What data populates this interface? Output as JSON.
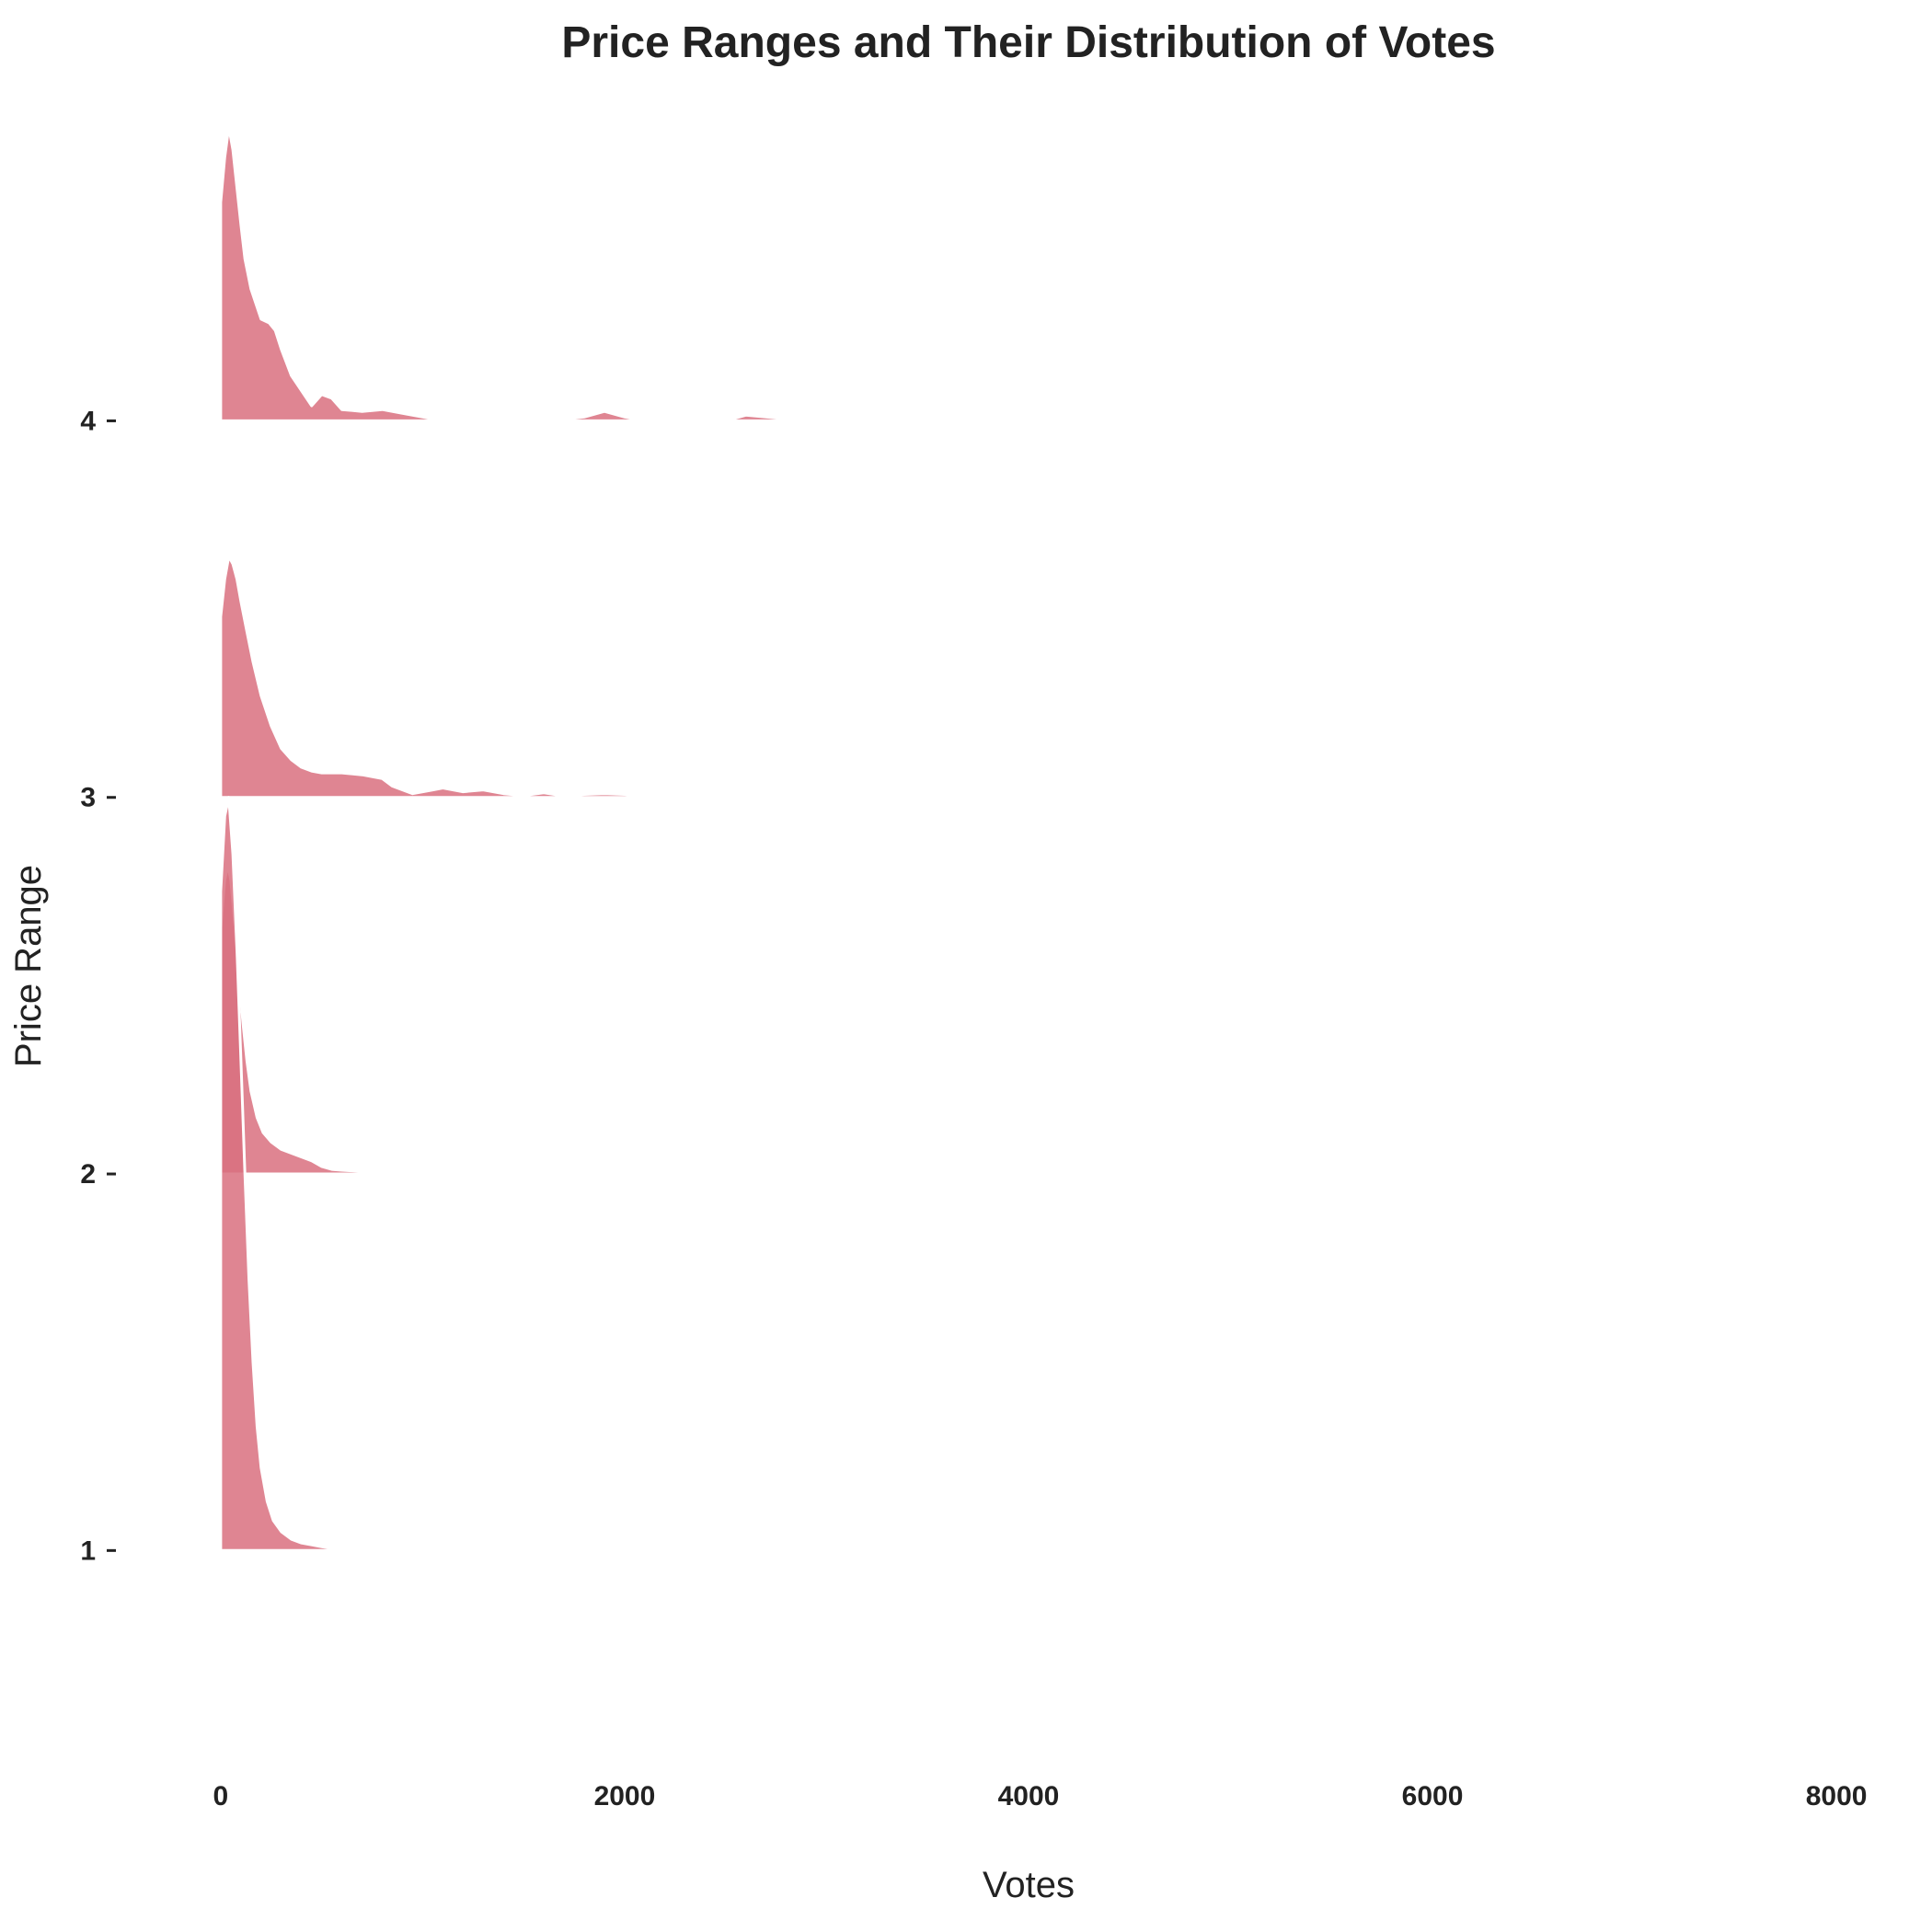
{
  "chart_data": {
    "type": "area",
    "subtype": "ridgeline density",
    "title": "Price Ranges and Their Distribution of Votes",
    "xlabel": "Votes",
    "ylabel": "Price Range",
    "xlim": [
      -200,
      8200
    ],
    "x_ticks": [
      0,
      2000,
      4000,
      6000,
      8000
    ],
    "y_ticks": [
      1,
      2,
      3,
      4
    ],
    "ylim": [
      0.5,
      4.8
    ],
    "grid": false,
    "legend": "none",
    "fill_color": "#d9707f",
    "fill_opacity": 0.85,
    "series": [
      {
        "category": "1",
        "baseline": 1,
        "points": [
          [
            0,
            1.4
          ],
          [
            0,
            1.75
          ],
          [
            20,
            1.95
          ],
          [
            40,
            2.0
          ],
          [
            60,
            1.85
          ],
          [
            80,
            1.6
          ],
          [
            100,
            1.3
          ],
          [
            120,
            1.0
          ],
          [
            140,
            0.72
          ],
          [
            160,
            0.5
          ],
          [
            180,
            0.33
          ],
          [
            200,
            0.22
          ],
          [
            230,
            0.13
          ],
          [
            260,
            0.08
          ],
          [
            300,
            0.05
          ],
          [
            350,
            0.03
          ],
          [
            400,
            0.02
          ],
          [
            450,
            0.015
          ],
          [
            500,
            0.01
          ],
          [
            560,
            0.005
          ],
          [
            580,
            0.0
          ]
        ]
      },
      {
        "category": "2",
        "baseline": 2,
        "points": [
          [
            0,
            0.65
          ],
          [
            10,
            0.72
          ],
          [
            20,
            0.78
          ],
          [
            35,
            0.82
          ],
          [
            50,
            0.78
          ],
          [
            70,
            0.66
          ],
          [
            90,
            0.52
          ],
          [
            110,
            0.4
          ],
          [
            130,
            0.3
          ],
          [
            150,
            0.22
          ],
          [
            180,
            0.15
          ],
          [
            210,
            0.11
          ],
          [
            250,
            0.085
          ],
          [
            300,
            0.065
          ],
          [
            350,
            0.055
          ],
          [
            400,
            0.045
          ],
          [
            450,
            0.035
          ],
          [
            500,
            0.02
          ],
          [
            550,
            0.012
          ],
          [
            600,
            0.01
          ],
          [
            700,
            0.007
          ],
          [
            800,
            0.005
          ],
          [
            1000,
            0.003
          ],
          [
            1200,
            0.002
          ],
          [
            1400,
            0.002
          ],
          [
            1600,
            0.0
          ]
        ]
      },
      {
        "category": "3",
        "baseline": 3,
        "points": [
          [
            0,
            0.48
          ],
          [
            20,
            0.58
          ],
          [
            40,
            0.64
          ],
          [
            60,
            0.62
          ],
          [
            80,
            0.58
          ],
          [
            100,
            0.52
          ],
          [
            130,
            0.44
          ],
          [
            160,
            0.36
          ],
          [
            200,
            0.27
          ],
          [
            250,
            0.19
          ],
          [
            300,
            0.13
          ],
          [
            350,
            0.1
          ],
          [
            400,
            0.08
          ],
          [
            450,
            0.07
          ],
          [
            500,
            0.065
          ],
          [
            600,
            0.065
          ],
          [
            700,
            0.06
          ],
          [
            800,
            0.05
          ],
          [
            850,
            0.03
          ],
          [
            950,
            0.01
          ],
          [
            1050,
            0.02
          ],
          [
            1100,
            0.025
          ],
          [
            1200,
            0.015
          ],
          [
            1300,
            0.02
          ],
          [
            1400,
            0.01
          ],
          [
            1500,
            0.005
          ],
          [
            1600,
            0.012
          ],
          [
            1700,
            0.004
          ],
          [
            1800,
            0.008
          ],
          [
            1900,
            0.01
          ],
          [
            2000,
            0.008
          ],
          [
            2100,
            0.003
          ],
          [
            2300,
            0.003
          ],
          [
            2500,
            0.002
          ],
          [
            3000,
            0.003
          ],
          [
            3500,
            0.001
          ],
          [
            4000,
            0.001
          ],
          [
            5000,
            0.0
          ]
        ]
      },
      {
        "category": "4",
        "baseline": 4,
        "points": [
          [
            0,
            0.58
          ],
          [
            20,
            0.7
          ],
          [
            40,
            0.78
          ],
          [
            60,
            0.72
          ],
          [
            80,
            0.62
          ],
          [
            100,
            0.52
          ],
          [
            120,
            0.43
          ],
          [
            150,
            0.35
          ],
          [
            200,
            0.27
          ],
          [
            240,
            0.26
          ],
          [
            270,
            0.24
          ],
          [
            300,
            0.19
          ],
          [
            350,
            0.12
          ],
          [
            400,
            0.08
          ],
          [
            450,
            0.04
          ],
          [
            500,
            0.07
          ],
          [
            550,
            0.06
          ],
          [
            600,
            0.03
          ],
          [
            700,
            0.025
          ],
          [
            800,
            0.03
          ],
          [
            900,
            0.02
          ],
          [
            1000,
            0.01
          ],
          [
            1100,
            0.0
          ],
          [
            1200,
            0.006
          ],
          [
            1300,
            0.0
          ],
          [
            1400,
            0.006
          ],
          [
            1500,
            0.004
          ],
          [
            1600,
            0.008
          ],
          [
            1700,
            0.004
          ],
          [
            1800,
            0.01
          ],
          [
            1900,
            0.025
          ],
          [
            2000,
            0.01
          ],
          [
            2100,
            0.0
          ],
          [
            2200,
            0.0
          ],
          [
            2300,
            0.006
          ],
          [
            2500,
            0.0
          ],
          [
            2600,
            0.015
          ],
          [
            2700,
            0.01
          ],
          [
            2800,
            0.005
          ],
          [
            2900,
            0.0
          ]
        ]
      }
    ]
  }
}
